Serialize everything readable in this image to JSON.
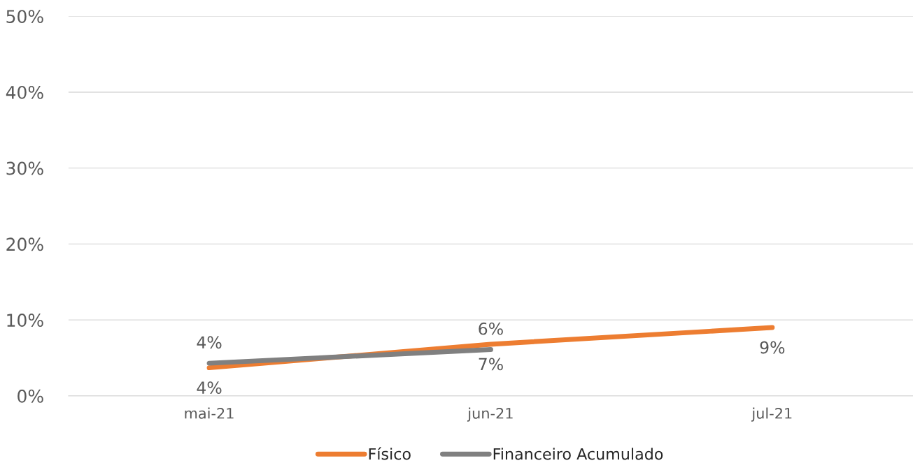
{
  "chart_data": {
    "type": "line",
    "categories": [
      "mai-21",
      "jun-21",
      "jul-21"
    ],
    "series": [
      {
        "name": "Físico",
        "color": "#ed7d31",
        "values": [
          3.7,
          6.8,
          9.0
        ],
        "value_labels": [
          "4%",
          "7%",
          "9%"
        ]
      },
      {
        "name": "Financeiro Acumulado",
        "color": "#808080",
        "values": [
          4.3,
          6.1,
          null
        ],
        "value_labels": [
          "4%",
          "6%",
          null
        ]
      }
    ],
    "ylim": [
      0,
      50
    ],
    "yticks": [
      {
        "value": 0,
        "label": "0%"
      },
      {
        "value": 10,
        "label": "10%"
      },
      {
        "value": 20,
        "label": "20%"
      },
      {
        "value": 30,
        "label": "30%"
      },
      {
        "value": 40,
        "label": "40%"
      },
      {
        "value": 50,
        "label": "50%"
      }
    ],
    "grid": "y",
    "legend": "bottom",
    "marker": "none",
    "line_style": "solid"
  }
}
